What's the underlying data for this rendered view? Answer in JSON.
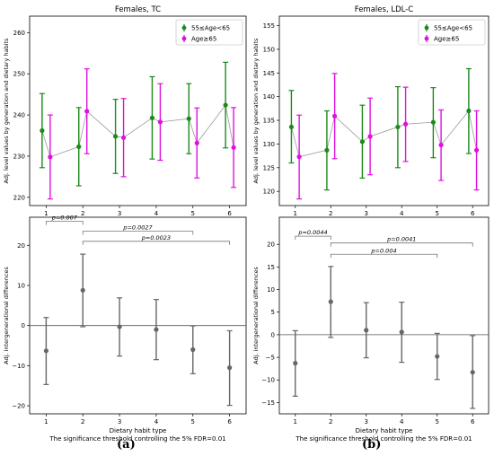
{
  "panel_labels": [
    "(a)",
    "(b)"
  ],
  "chart_data": [
    {
      "type": "scatter",
      "subtype": "errorbar-paired",
      "title": "Females, TC",
      "xlabel": "",
      "ylabel": "Adj. level values by generation and dietary habits",
      "x": [
        1,
        2,
        3,
        4,
        5,
        6
      ],
      "xticks": [
        "1",
        "2",
        "3",
        "4",
        "5",
        "6"
      ],
      "ylim": [
        218,
        264
      ],
      "yticks": [
        220,
        230,
        240,
        250,
        260
      ],
      "legend": "top-right",
      "series": [
        {
          "name": "55≤Age<65",
          "color": "#1a8a1a",
          "values": [
            236.2,
            232.3,
            234.8,
            239.3,
            239.1,
            242.4
          ],
          "lower": [
            227.2,
            222.8,
            225.8,
            229.3,
            230.6,
            232.0
          ],
          "upper": [
            245.2,
            241.8,
            243.8,
            249.3,
            247.6,
            252.8
          ]
        },
        {
          "name": "Age≥65",
          "color": "#e010e0",
          "values": [
            229.8,
            240.9,
            234.5,
            238.3,
            233.2,
            232.1
          ],
          "lower": [
            219.6,
            230.6,
            225.0,
            229.0,
            224.7,
            222.4
          ],
          "upper": [
            240.0,
            251.2,
            244.0,
            247.6,
            241.7,
            241.8
          ]
        }
      ]
    },
    {
      "type": "scatter",
      "subtype": "errorbar-paired",
      "title": "Females, LDL-C",
      "xlabel": "",
      "ylabel": "Adj. level values by generation and dietary habits",
      "x": [
        1,
        2,
        3,
        4,
        5,
        6
      ],
      "xticks": [
        "1",
        "2",
        "3",
        "4",
        "5",
        "6"
      ],
      "ylim": [
        117,
        157
      ],
      "yticks": [
        120,
        125,
        130,
        135,
        140,
        145,
        150,
        155
      ],
      "legend": "top-right",
      "series": [
        {
          "name": "55≤Age<65",
          "color": "#1a8a1a",
          "values": [
            133.6,
            128.7,
            130.5,
            133.6,
            134.6,
            137.0
          ],
          "lower": [
            126.0,
            120.3,
            122.8,
            125.0,
            127.1,
            128.0
          ],
          "upper": [
            141.3,
            137.0,
            138.2,
            142.1,
            141.9,
            145.9
          ]
        },
        {
          "name": "Age≥65",
          "color": "#e010e0",
          "values": [
            127.3,
            135.9,
            131.6,
            134.2,
            129.8,
            128.7
          ],
          "lower": [
            118.4,
            126.9,
            123.5,
            126.3,
            122.3,
            120.3
          ],
          "upper": [
            136.1,
            144.9,
            139.7,
            142.0,
            137.2,
            137.0
          ]
        }
      ]
    },
    {
      "type": "scatter",
      "subtype": "errorbar",
      "title": "",
      "xlabel": "Dietary habit type",
      "footnote": "The significance threshold controlling the 5% FDR=0.01",
      "ylabel": "Adj. intergenerational differences",
      "x": [
        1,
        2,
        3,
        4,
        5,
        6
      ],
      "xticks": [
        "1",
        "2",
        "3",
        "4",
        "5",
        "6"
      ],
      "ylim": [
        -22,
        27
      ],
      "yticks": [
        -20,
        -10,
        0,
        10,
        20
      ],
      "reference_line": 0,
      "series": [
        {
          "color": "#666666",
          "values": [
            -6.3,
            8.8,
            -0.3,
            -1.0,
            -6.0,
            -10.5
          ],
          "lower": [
            -14.7,
            -0.3,
            -7.6,
            -8.5,
            -12.0,
            -19.9
          ],
          "upper": [
            2.0,
            17.8,
            6.9,
            6.5,
            -0.1,
            -1.3
          ]
        }
      ],
      "brackets": [
        {
          "from": 1,
          "to": 2,
          "label": "p=0.007",
          "y": 26.0
        },
        {
          "from": 2,
          "to": 5,
          "label": "p=0.0027",
          "y": 23.5
        },
        {
          "from": 2,
          "to": 6,
          "label": "p=0.0023",
          "y": 21.0
        }
      ]
    },
    {
      "type": "scatter",
      "subtype": "errorbar",
      "title": "",
      "xlabel": "Dietary habit type",
      "footnote": "The significance threshold controlling the 5% FDR=0.01",
      "ylabel": "Adj. intergenerational differences",
      "x": [
        1,
        2,
        3,
        4,
        5,
        6
      ],
      "xticks": [
        "1",
        "2",
        "3",
        "4",
        "5",
        "6"
      ],
      "ylim": [
        -17.5,
        26
      ],
      "yticks": [
        -15,
        -10,
        -5,
        0,
        5,
        10,
        15,
        20
      ],
      "reference_line": 0,
      "series": [
        {
          "color": "#666666",
          "values": [
            -6.3,
            7.3,
            1.0,
            0.6,
            -4.8,
            -8.3
          ],
          "lower": [
            -13.6,
            -0.6,
            -5.1,
            -6.1,
            -9.9,
            -16.3
          ],
          "upper": [
            0.9,
            15.1,
            7.1,
            7.2,
            0.3,
            -0.2
          ]
        }
      ],
      "brackets": [
        {
          "from": 1,
          "to": 2,
          "label": "p=0.0044",
          "y": 21.8
        },
        {
          "from": 2,
          "to": 6,
          "label": "p=0.0041",
          "y": 20.3
        },
        {
          "from": 2,
          "to": 5,
          "label": "p=0.004",
          "y": 17.8
        }
      ]
    }
  ]
}
